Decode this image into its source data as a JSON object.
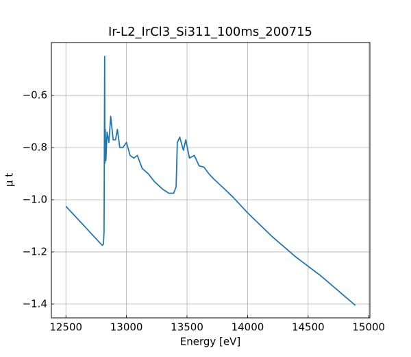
{
  "chart_data": {
    "type": "line",
    "title": "Ir-L2_IrCl3_Si311_100ms_200715",
    "xlabel": "Energy [eV]",
    "ylabel": "μ t",
    "x": [
      12500,
      12800,
      12810,
      12815,
      12820,
      12822,
      12825,
      12830,
      12840,
      12855,
      12870,
      12890,
      12910,
      12925,
      12945,
      12970,
      13000,
      13030,
      13060,
      13090,
      13130,
      13180,
      13230,
      13300,
      13350,
      13390,
      13410,
      13420,
      13440,
      13470,
      13490,
      13520,
      13560,
      13600,
      13640,
      13680,
      13720,
      13790,
      13880,
      14000,
      14200,
      14400,
      14600,
      14890
    ],
    "values": [
      -1.025,
      -1.175,
      -1.17,
      -1.12,
      -0.45,
      -0.86,
      -0.73,
      -0.85,
      -0.74,
      -0.78,
      -0.68,
      -0.77,
      -0.77,
      -0.73,
      -0.8,
      -0.8,
      -0.78,
      -0.83,
      -0.84,
      -0.83,
      -0.88,
      -0.9,
      -0.93,
      -0.96,
      -0.975,
      -0.975,
      -0.95,
      -0.78,
      -0.76,
      -0.81,
      -0.77,
      -0.84,
      -0.83,
      -0.87,
      -0.875,
      -0.9,
      -0.92,
      -0.95,
      -0.99,
      -1.05,
      -1.14,
      -1.22,
      -1.29,
      -1.405
    ],
    "color": "#1f77b4",
    "xlim": [
      12380,
      15010
    ],
    "xticks": [
      12500,
      13000,
      13500,
      14000,
      14500,
      15000
    ],
    "ylim": [
      -1.453,
      -0.397
    ],
    "yticks": [
      {
        "value": -1.4,
        "label": "−1.4"
      },
      {
        "value": -1.2,
        "label": "−1.2"
      },
      {
        "value": -1.0,
        "label": "−1.0"
      },
      {
        "value": -0.8,
        "label": "−0.8"
      },
      {
        "value": -0.6,
        "label": "−0.6"
      }
    ],
    "grid": true
  }
}
